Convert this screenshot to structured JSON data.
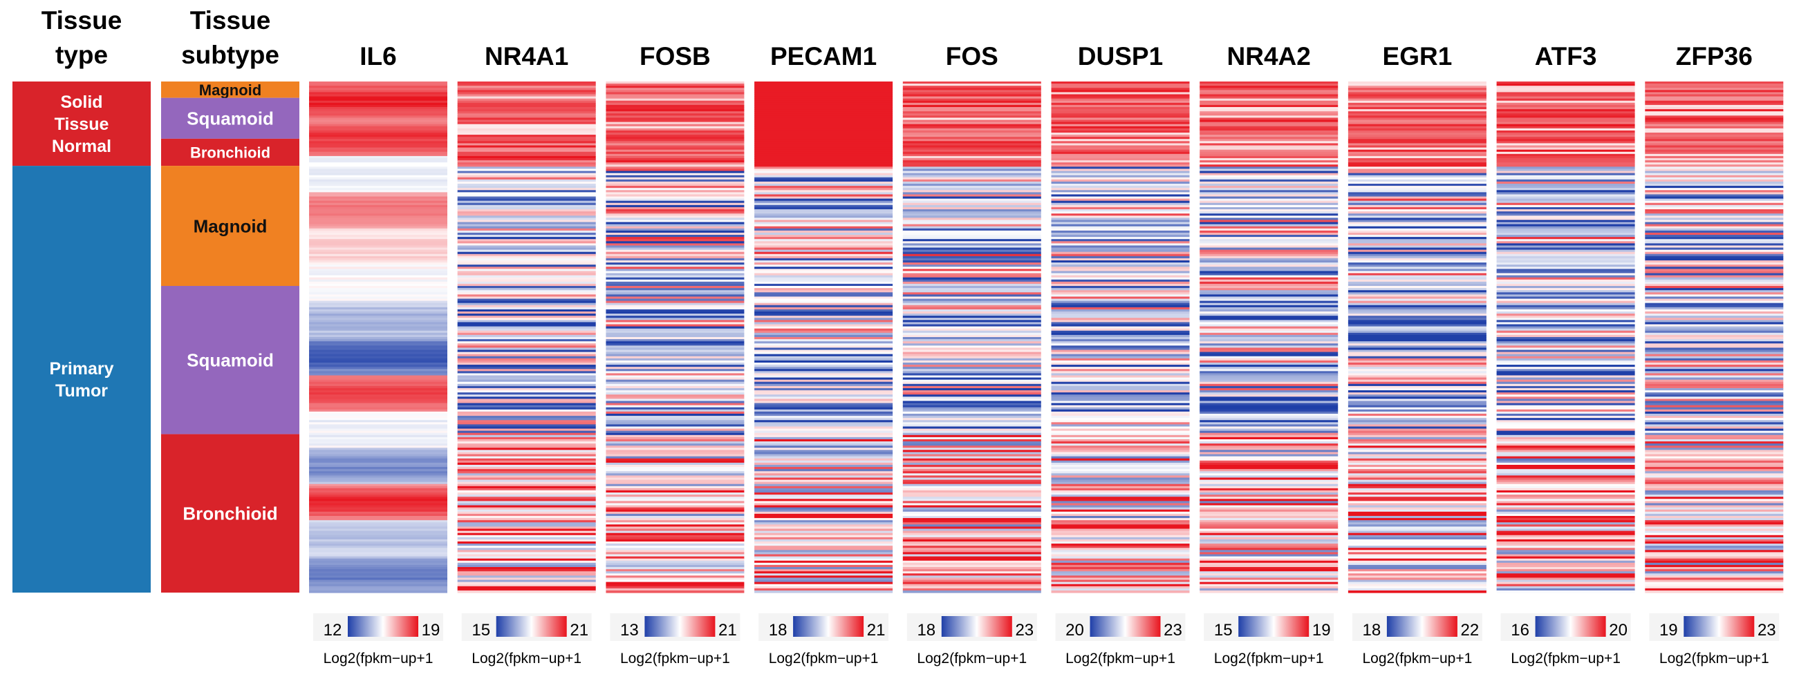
{
  "chart_data": {
    "type": "heatmap",
    "annotation_tracks": [
      {
        "name": "tissue_type",
        "title_lines": [
          "Tissue",
          "type"
        ],
        "segments": [
          {
            "label_lines": [
              "Solid",
              "Tissue",
              "Normal"
            ],
            "color": "#D9232A",
            "start": 0.0,
            "end": 0.165
          },
          {
            "label_lines": [
              "Primary",
              "Tumor"
            ],
            "color": "#1F77B4",
            "start": 0.165,
            "end": 1.0
          }
        ]
      },
      {
        "name": "tissue_subtype",
        "title_lines": [
          "Tissue",
          "subtype"
        ],
        "segments": [
          {
            "label_lines": [
              "Magnoid"
            ],
            "color": "#F08122",
            "start": 0.0,
            "end": 0.032,
            "dark_text": true
          },
          {
            "label_lines": [
              "Squamoid"
            ],
            "color": "#9467BD",
            "start": 0.032,
            "end": 0.112
          },
          {
            "label_lines": [
              "Bronchioid"
            ],
            "color": "#D9232A",
            "start": 0.112,
            "end": 0.165
          },
          {
            "label_lines": [
              "Magnoid"
            ],
            "color": "#F08122",
            "start": 0.165,
            "end": 0.4,
            "dark_text": true
          },
          {
            "label_lines": [
              "Squamoid"
            ],
            "color": "#9467BD",
            "start": 0.4,
            "end": 0.69
          },
          {
            "label_lines": [
              "Bronchioid"
            ],
            "color": "#D9232A",
            "start": 0.69,
            "end": 1.0
          }
        ]
      }
    ],
    "genes": [
      {
        "name": "IL6",
        "min": "12",
        "max": "19",
        "unit": "Log2(fpkm−up+1",
        "seed": 11,
        "smooth": true
      },
      {
        "name": "NR4A1",
        "min": "15",
        "max": "21",
        "unit": "Log2(fpkm−up+1",
        "seed": 23,
        "smooth": false
      },
      {
        "name": "FOSB",
        "min": "13",
        "max": "21",
        "unit": "Log2(fpkm−up+1",
        "seed": 37,
        "smooth": false
      },
      {
        "name": "PECAM1",
        "min": "18",
        "max": "21",
        "unit": "Log2(fpkm−up+1",
        "seed": 41,
        "smooth": false,
        "solid_normal_red": true
      },
      {
        "name": "FOS",
        "min": "18",
        "max": "23",
        "unit": "Log2(fpkm−up+1",
        "seed": 53,
        "smooth": false
      },
      {
        "name": "DUSP1",
        "min": "20",
        "max": "23",
        "unit": "Log2(fpkm−up+1",
        "seed": 67,
        "smooth": false
      },
      {
        "name": "NR4A2",
        "min": "15",
        "max": "19",
        "unit": "Log2(fpkm−up+1",
        "seed": 71,
        "smooth": false
      },
      {
        "name": "EGR1",
        "min": "18",
        "max": "22",
        "unit": "Log2(fpkm−up+1",
        "seed": 83,
        "smooth": false
      },
      {
        "name": "ATF3",
        "min": "16",
        "max": "20",
        "unit": "Log2(fpkm−up+1",
        "seed": 97,
        "smooth": false
      },
      {
        "name": "ZFP36",
        "min": "19",
        "max": "23",
        "unit": "Log2(fpkm−up+1",
        "seed": 101,
        "smooth": false
      }
    ],
    "color_scale": {
      "low": "#1F3FA8",
      "mid": "#FFFFFF",
      "high": "#E8141E"
    }
  }
}
